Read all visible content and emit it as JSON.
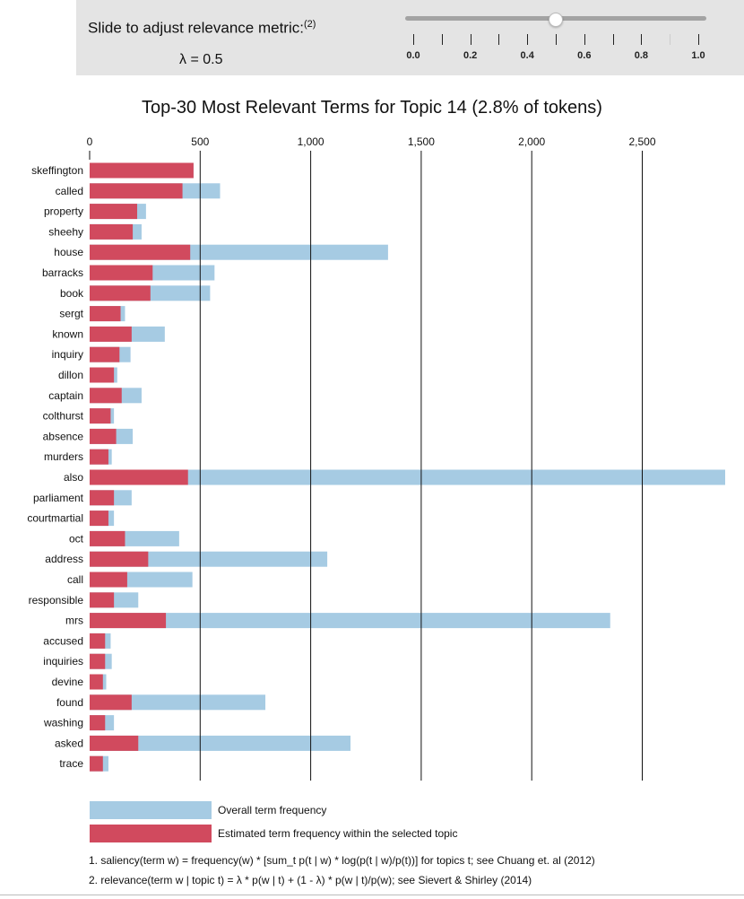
{
  "slider": {
    "label": "Slide to adjust relevance metric:",
    "label_sup": "(2)",
    "lambda_text": "λ = 0.5",
    "value": 0.5,
    "min": 0.0,
    "max": 1.0,
    "tick_labels": [
      "0.0",
      "0.2",
      "0.4",
      "0.6",
      "0.8",
      "1.0"
    ]
  },
  "chart_data": {
    "type": "bar",
    "orientation": "horizontal",
    "title": "Top-30 Most Relevant Terms for Topic 14 (2.8% of tokens)",
    "xlim": [
      0,
      2900
    ],
    "x_ticks": [
      0,
      500,
      1000,
      1500,
      2000,
      2500
    ],
    "x_tick_labels": [
      "0",
      "500",
      "1,000",
      "1,500",
      "2,000",
      "2,500"
    ],
    "categories": [
      "skeffington",
      "called",
      "property",
      "sheehy",
      "house",
      "barracks",
      "book",
      "sergt",
      "known",
      "inquiry",
      "dillon",
      "captain",
      "colthurst",
      "absence",
      "murders",
      "also",
      "parliament",
      "courtmartial",
      "oct",
      "address",
      "call",
      "responsible",
      "mrs",
      "accused",
      "inquiries",
      "devine",
      "found",
      "washing",
      "asked",
      "trace"
    ],
    "series": [
      {
        "name": "Overall term frequency",
        "color": "#a6cbe3",
        "values": [
          470,
          590,
          255,
          235,
          1350,
          565,
          545,
          160,
          340,
          185,
          125,
          235,
          110,
          195,
          100,
          2880,
          190,
          110,
          405,
          1075,
          465,
          220,
          2355,
          95,
          100,
          75,
          795,
          110,
          1180,
          85
        ]
      },
      {
        "name": "Estimated term frequency within the selected topic",
        "color": "#d14a5e",
        "values": [
          470,
          420,
          215,
          195,
          455,
          285,
          275,
          140,
          190,
          135,
          110,
          145,
          95,
          120,
          85,
          445,
          110,
          85,
          160,
          265,
          170,
          110,
          345,
          70,
          70,
          60,
          190,
          70,
          220,
          60
        ]
      }
    ],
    "legend_position": "bottom",
    "grid": true
  },
  "legend": {
    "overall": "Overall term frequency",
    "topic": "Estimated term frequency within the selected topic"
  },
  "footnotes": {
    "one": "1. saliency(term w) = frequency(w) * [sum_t p(t | w) * log(p(t | w)/p(t))] for topics t; see Chuang et. al (2012)",
    "two": "2. relevance(term w | topic t) = λ * p(w | t) + (1 - λ) * p(w | t)/p(w); see Sievert & Shirley (2014)"
  },
  "colors": {
    "overall": "#a6cbe3",
    "topic": "#d14a5e",
    "panel_bg": "#e4e4e4"
  }
}
